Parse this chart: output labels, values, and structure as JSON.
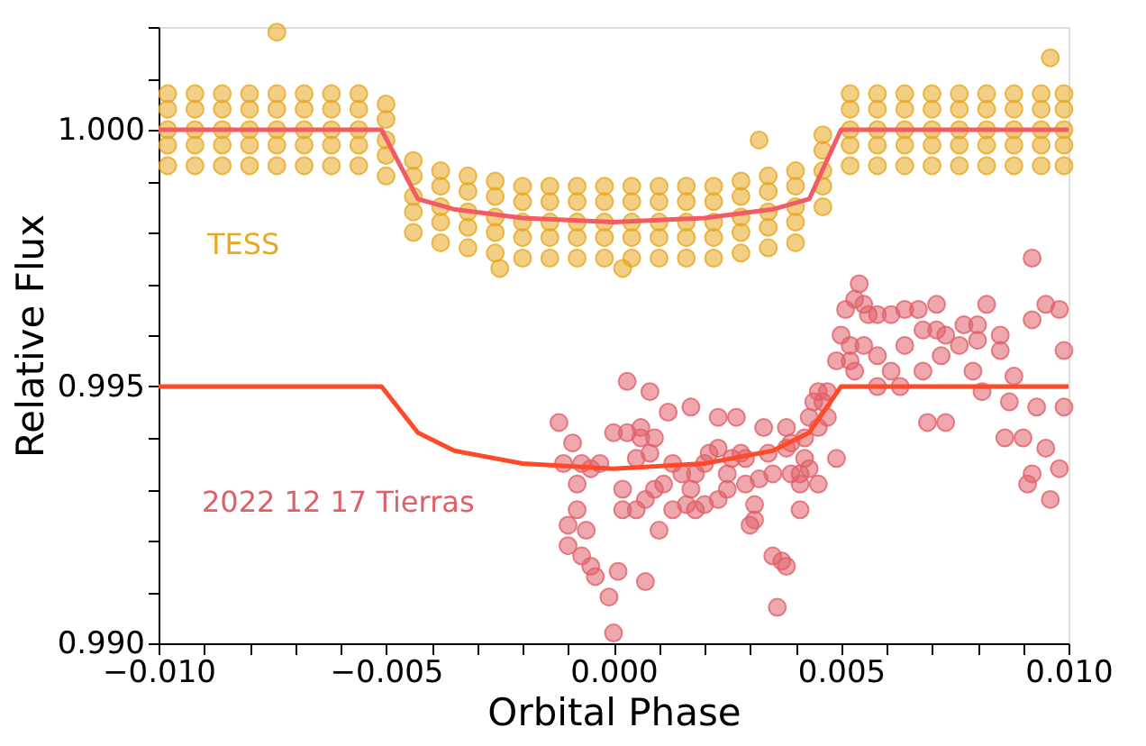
{
  "chart_data": {
    "type": "scatter",
    "xlabel": "Orbital Phase",
    "ylabel": "Relative Flux",
    "xlim": [
      -0.01,
      0.01
    ],
    "ylim": [
      0.99,
      1.002
    ],
    "grid": false,
    "xticks": [
      {
        "value": -0.01,
        "label": "−0.010"
      },
      {
        "value": -0.009,
        "label": null
      },
      {
        "value": -0.008,
        "label": null
      },
      {
        "value": -0.007,
        "label": null
      },
      {
        "value": -0.006,
        "label": null
      },
      {
        "value": -0.005,
        "label": "−0.005"
      },
      {
        "value": -0.004,
        "label": null
      },
      {
        "value": -0.003,
        "label": null
      },
      {
        "value": -0.002,
        "label": null
      },
      {
        "value": -0.001,
        "label": null
      },
      {
        "value": 0.0,
        "label": "0.000"
      },
      {
        "value": 0.001,
        "label": null
      },
      {
        "value": 0.002,
        "label": null
      },
      {
        "value": 0.003,
        "label": null
      },
      {
        "value": 0.004,
        "label": null
      },
      {
        "value": 0.005,
        "label": "0.005"
      },
      {
        "value": 0.006,
        "label": null
      },
      {
        "value": 0.007,
        "label": null
      },
      {
        "value": 0.008,
        "label": null
      },
      {
        "value": 0.009,
        "label": null
      },
      {
        "value": 0.01,
        "label": "0.010"
      }
    ],
    "yticks": [
      {
        "value": 0.99,
        "label": "0.990"
      },
      {
        "value": 0.991,
        "label": null
      },
      {
        "value": 0.992,
        "label": null
      },
      {
        "value": 0.993,
        "label": null
      },
      {
        "value": 0.994,
        "label": null
      },
      {
        "value": 0.995,
        "label": "0.995"
      },
      {
        "value": 0.996,
        "label": null
      },
      {
        "value": 0.997,
        "label": null
      },
      {
        "value": 0.998,
        "label": null
      },
      {
        "value": 0.999,
        "label": null
      },
      {
        "value": 1.0,
        "label": "1.000"
      },
      {
        "value": 1.001,
        "label": null
      },
      {
        "value": 1.002,
        "label": null
      }
    ],
    "series": [
      {
        "name": "TESS",
        "marker": "circle",
        "color": "#e8a820",
        "x": [
          -0.0098,
          -0.0098,
          -0.0098,
          -0.0098,
          -0.0098,
          -0.0092,
          -0.0092,
          -0.0092,
          -0.0092,
          -0.0092,
          -0.0086,
          -0.0086,
          -0.0086,
          -0.0086,
          -0.0086,
          -0.008,
          -0.008,
          -0.008,
          -0.008,
          -0.008,
          -0.0074,
          -0.0074,
          -0.0074,
          -0.0074,
          -0.0074,
          -0.0068,
          -0.0068,
          -0.0068,
          -0.0068,
          -0.0068,
          -0.0062,
          -0.0062,
          -0.0062,
          -0.0062,
          -0.0062,
          -0.0056,
          -0.0056,
          -0.0056,
          -0.0056,
          -0.0056,
          -0.005,
          -0.005,
          -0.005,
          -0.005,
          -0.005,
          -0.0044,
          -0.0044,
          -0.0044,
          -0.0044,
          -0.0044,
          -0.0038,
          -0.0038,
          -0.0038,
          -0.0038,
          -0.0038,
          -0.0032,
          -0.0032,
          -0.0032,
          -0.0032,
          -0.0032,
          -0.0026,
          -0.0026,
          -0.0026,
          -0.0026,
          -0.0026,
          -0.002,
          -0.002,
          -0.002,
          -0.002,
          -0.002,
          -0.0014,
          -0.0014,
          -0.0014,
          -0.0014,
          -0.0014,
          -0.0008,
          -0.0008,
          -0.0008,
          -0.0008,
          -0.0008,
          -0.0002,
          -0.0002,
          -0.0002,
          -0.0002,
          -0.0002,
          0.0004,
          0.0004,
          0.0004,
          0.0004,
          0.0004,
          0.001,
          0.001,
          0.001,
          0.001,
          0.001,
          0.0016,
          0.0016,
          0.0016,
          0.0016,
          0.0016,
          0.0022,
          0.0022,
          0.0022,
          0.0022,
          0.0022,
          0.0028,
          0.0028,
          0.0028,
          0.0028,
          0.0028,
          0.0034,
          0.0034,
          0.0034,
          0.0034,
          0.0034,
          0.004,
          0.004,
          0.004,
          0.004,
          0.004,
          0.0046,
          0.0046,
          0.0046,
          0.0046,
          0.0046,
          0.0052,
          0.0052,
          0.0052,
          0.0052,
          0.0052,
          0.0058,
          0.0058,
          0.0058,
          0.0058,
          0.0058,
          0.0064,
          0.0064,
          0.0064,
          0.0064,
          0.0064,
          0.007,
          0.007,
          0.007,
          0.007,
          0.007,
          0.0076,
          0.0076,
          0.0076,
          0.0076,
          0.0076,
          0.0082,
          0.0082,
          0.0082,
          0.0082,
          0.0082,
          0.0088,
          0.0088,
          0.0088,
          0.0088,
          0.0088,
          0.0094,
          0.0094,
          0.0094,
          0.0094,
          0.0094,
          0.0099,
          0.0099,
          0.0099,
          0.0099,
          0.0099,
          -0.0074,
          0.0096,
          -0.0025,
          0.0002,
          0.0032
        ],
        "values": [
          1.0007,
          1.0004,
          1.0,
          0.9997,
          0.9993,
          1.0007,
          1.0004,
          1.0,
          0.9997,
          0.9993,
          1.0007,
          1.0004,
          1.0,
          0.9997,
          0.9993,
          1.0007,
          1.0004,
          1.0,
          0.9997,
          0.9993,
          1.0007,
          1.0004,
          1.0,
          0.9997,
          0.9993,
          1.0007,
          1.0004,
          1.0,
          0.9997,
          0.9993,
          1.0007,
          1.0004,
          1.0,
          0.9997,
          0.9993,
          1.0007,
          1.0004,
          1.0,
          0.9997,
          0.9993,
          1.0005,
          1.0002,
          0.9998,
          0.9995,
          0.9991,
          0.9994,
          0.9991,
          0.9987,
          0.9984,
          0.998,
          0.9992,
          0.9989,
          0.9985,
          0.9982,
          0.9978,
          0.9991,
          0.9988,
          0.9984,
          0.9981,
          0.9977,
          0.999,
          0.9987,
          0.9983,
          0.998,
          0.9976,
          0.9989,
          0.9986,
          0.9982,
          0.9979,
          0.9975,
          0.9989,
          0.9986,
          0.9982,
          0.9979,
          0.9975,
          0.9989,
          0.9986,
          0.9982,
          0.9979,
          0.9975,
          0.9989,
          0.9986,
          0.9982,
          0.9979,
          0.9975,
          0.9989,
          0.9986,
          0.9982,
          0.9979,
          0.9975,
          0.9989,
          0.9986,
          0.9982,
          0.9979,
          0.9975,
          0.9989,
          0.9986,
          0.9982,
          0.9979,
          0.9975,
          0.9989,
          0.9986,
          0.9982,
          0.9979,
          0.9975,
          0.999,
          0.9987,
          0.9983,
          0.998,
          0.9976,
          0.9991,
          0.9988,
          0.9984,
          0.9981,
          0.9977,
          0.9992,
          0.9989,
          0.9985,
          0.9982,
          0.9978,
          0.9999,
          0.9996,
          0.9992,
          0.9989,
          0.9985,
          1.0007,
          1.0004,
          1.0,
          0.9997,
          0.9993,
          1.0007,
          1.0004,
          1.0,
          0.9997,
          0.9993,
          1.0007,
          1.0004,
          1.0,
          0.9997,
          0.9993,
          1.0007,
          1.0004,
          1.0,
          0.9997,
          0.9993,
          1.0007,
          1.0004,
          1.0,
          0.9997,
          0.9993,
          1.0007,
          1.0004,
          1.0,
          0.9997,
          0.9993,
          1.0007,
          1.0004,
          1.0,
          0.9997,
          0.9993,
          1.0007,
          1.0004,
          1.0,
          0.9997,
          0.9993,
          1.0007,
          1.0004,
          1.0,
          0.9997,
          0.9993,
          1.0019,
          1.0014,
          0.9973,
          0.9973,
          0.9998
        ]
      },
      {
        "type": "line",
        "marker": "none",
        "line_style": "solid",
        "color": "#f25a64",
        "x": [
          -0.01,
          -0.0051,
          -0.0043,
          -0.0035,
          -0.002,
          0.0,
          0.002,
          0.0035,
          0.0043,
          0.005,
          0.01
        ],
        "values": [
          1.0,
          1.0,
          0.99865,
          0.99845,
          0.99828,
          0.9982,
          0.99828,
          0.99845,
          0.99865,
          1.0,
          1.0
        ]
      },
      {
        "name": "2022 12 17 Tierras",
        "marker": "circle",
        "color": "#e0606a",
        "x": [
          -0.0012,
          -0.0009,
          -0.0011,
          -0.0007,
          -0.0005,
          -0.0008,
          -0.0003,
          -0.0008,
          -0.001,
          -0.0006,
          -0.001,
          -0.0007,
          -0.0005,
          -0.0004,
          -0.0001,
          0.0,
          0.0001,
          0.0007,
          0.0003,
          0.0008,
          0.0,
          0.0003,
          0.0006,
          0.0009,
          0.0012,
          0.0017,
          0.0023,
          0.0027,
          0.0033,
          0.0038,
          0.0039,
          0.0042,
          0.0044,
          0.0045,
          0.0047,
          0.0049,
          0.0051,
          0.0053,
          0.0054,
          0.0055,
          0.0056,
          0.0058,
          0.0061,
          0.0064,
          0.0068,
          0.0071,
          0.0073,
          0.0077,
          0.0082,
          0.0085,
          0.0092,
          0.0092,
          0.0095,
          0.0098,
          0.0099,
          0.0052,
          0.0053,
          0.005,
          0.0055,
          0.0058,
          0.0063,
          0.0069,
          0.0073,
          0.0079,
          0.0087,
          0.009,
          0.0093,
          0.0095,
          0.0091,
          0.0096,
          0.0098,
          0.0092,
          0.0086,
          0.0081,
          0.0068,
          0.0061,
          0.0058,
          0.0064,
          0.0072,
          0.0076,
          0.008,
          0.0085,
          0.0088,
          0.0099,
          0.0071,
          0.0067,
          0.008,
          0.0047,
          0.0049,
          0.0045,
          0.0043,
          0.0041,
          0.0041,
          0.0039,
          0.0037,
          0.0038,
          0.0036,
          0.0035,
          0.0031,
          0.003,
          0.0031,
          0.0032,
          0.0029,
          0.0026,
          0.0025,
          0.0023,
          0.0021,
          0.002,
          0.0018,
          0.0017,
          0.0015,
          0.0013,
          0.0011,
          0.0009,
          0.0008,
          0.0006,
          0.0005,
          0.0002,
          0.0002,
          0.0005,
          0.0007,
          0.001,
          0.0013,
          0.0016,
          0.0018,
          0.002,
          0.0023,
          0.0025,
          0.0028,
          0.0029,
          0.0034,
          0.0035,
          0.0038,
          0.0041,
          0.0042,
          0.0045,
          0.0043,
          0.0046,
          0.0052
        ],
        "values": [
          0.9943,
          0.9939,
          0.9935,
          0.9935,
          0.9934,
          0.9931,
          0.9935,
          0.9926,
          0.9923,
          0.9922,
          0.9919,
          0.9917,
          0.9915,
          0.9913,
          0.9909,
          0.9902,
          0.9914,
          0.9912,
          0.9951,
          0.9949,
          0.9941,
          0.9941,
          0.9942,
          0.994,
          0.9945,
          0.9946,
          0.9944,
          0.9944,
          0.9942,
          0.9942,
          0.9939,
          0.994,
          0.9947,
          0.9949,
          0.9949,
          0.9955,
          0.9965,
          0.9967,
          0.997,
          0.9966,
          0.9964,
          0.9964,
          0.9964,
          0.9965,
          0.9961,
          0.9961,
          0.996,
          0.9962,
          0.9966,
          0.996,
          0.9975,
          0.9963,
          0.9966,
          0.9965,
          0.9957,
          0.9955,
          0.9953,
          0.996,
          0.9958,
          0.995,
          0.995,
          0.9943,
          0.9943,
          0.9953,
          0.9947,
          0.994,
          0.9946,
          0.9938,
          0.9931,
          0.9928,
          0.9934,
          0.9933,
          0.994,
          0.9949,
          0.9953,
          0.9953,
          0.9956,
          0.9958,
          0.9956,
          0.9958,
          0.9959,
          0.9957,
          0.9952,
          0.9946,
          0.9966,
          0.9965,
          0.9962,
          0.9944,
          0.9936,
          0.9931,
          0.9934,
          0.9931,
          0.9926,
          0.9933,
          0.9916,
          0.9915,
          0.9907,
          0.9917,
          0.9924,
          0.9923,
          0.9927,
          0.9932,
          0.9931,
          0.9936,
          0.9933,
          0.9938,
          0.9937,
          0.9935,
          0.9933,
          0.993,
          0.9933,
          0.9935,
          0.9931,
          0.993,
          0.9937,
          0.994,
          0.9936,
          0.993,
          0.9926,
          0.9926,
          0.9928,
          0.9922,
          0.9926,
          0.9927,
          0.9926,
          0.9927,
          0.9928,
          0.993,
          0.9937,
          0.9936,
          0.9937,
          0.9933,
          0.9938,
          0.9933,
          0.9936,
          0.9942,
          0.9944,
          0.9947,
          0.9958
        ]
      },
      {
        "type": "line",
        "marker": "none",
        "line_style": "solid",
        "color": "#ff4a2a",
        "x": [
          -0.01,
          -0.0051,
          -0.0043,
          -0.0035,
          -0.002,
          0.0,
          0.002,
          0.0035,
          0.0043,
          0.005,
          0.01
        ],
        "values": [
          0.995,
          0.995,
          0.9941,
          0.99375,
          0.9935,
          0.9934,
          0.9935,
          0.99375,
          0.9941,
          0.995,
          0.995
        ]
      }
    ]
  }
}
